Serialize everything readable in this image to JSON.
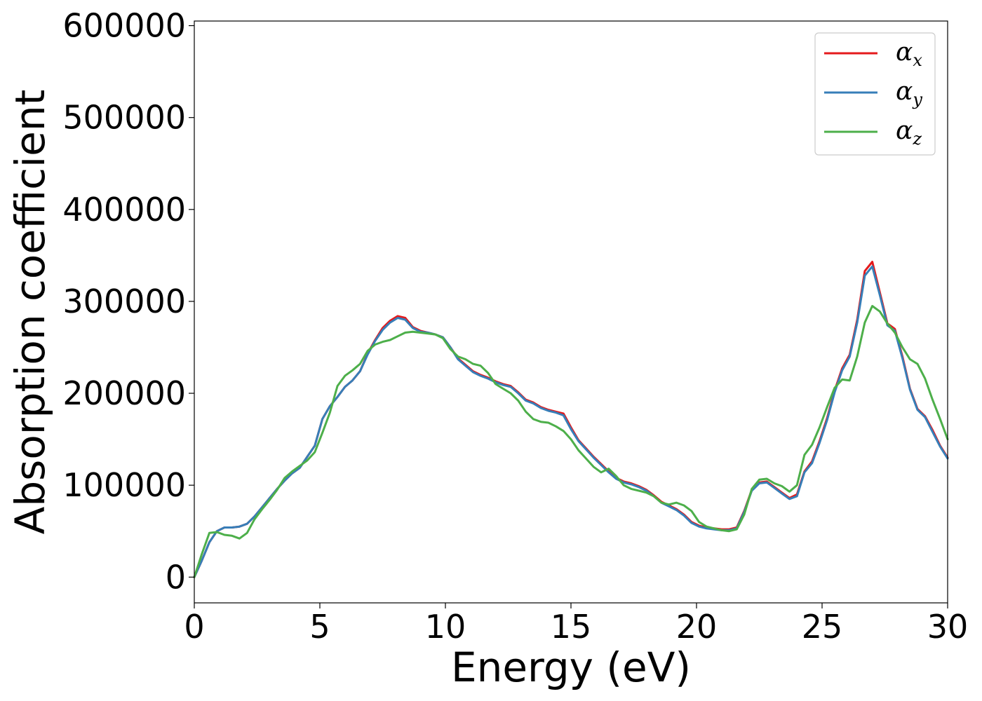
{
  "chart_data": {
    "type": "line",
    "xlabel": "Energy (eV)",
    "ylabel": "Absorption coefficient",
    "xlim": [
      0,
      30
    ],
    "ylim": [
      -28000,
      605000
    ],
    "xticks": [
      0,
      5,
      10,
      15,
      20,
      25,
      30
    ],
    "xtick_labels": [
      "0",
      "5",
      "10",
      "15",
      "20",
      "25",
      "30"
    ],
    "yticks": [
      0,
      100000,
      200000,
      300000,
      400000,
      500000,
      600000
    ],
    "ytick_labels": [
      "0",
      "100000",
      "200000",
      "300000",
      "400000",
      "500000",
      "600000"
    ],
    "grid": false,
    "legend_position": "top-right",
    "series": [
      {
        "name": "α",
        "subscript": "x",
        "color": "#e41a1c",
        "x": [
          0,
          0.3,
          0.6,
          0.9,
          1.2,
          1.5,
          1.8,
          2.1,
          2.4,
          2.7,
          3.0,
          3.3,
          3.6,
          3.9,
          4.2,
          4.5,
          4.8,
          5.1,
          5.4,
          5.7,
          6.0,
          6.3,
          6.6,
          6.9,
          7.2,
          7.5,
          7.8,
          8.1,
          8.4,
          8.7,
          9.0,
          9.3,
          9.6,
          9.9,
          10.2,
          10.5,
          10.8,
          11.1,
          11.4,
          11.7,
          12.0,
          12.3,
          12.6,
          12.9,
          13.2,
          13.5,
          13.8,
          14.1,
          14.4,
          14.7,
          15.0,
          15.3,
          15.6,
          15.9,
          16.2,
          16.5,
          16.8,
          17.1,
          17.4,
          17.7,
          18.0,
          18.3,
          18.6,
          18.9,
          19.2,
          19.5,
          19.8,
          20.1,
          20.4,
          20.7,
          21.0,
          21.3,
          21.6,
          21.9,
          22.2,
          22.5,
          22.8,
          23.1,
          23.4,
          23.7,
          24.0,
          24.3,
          24.6,
          24.9,
          25.2,
          25.5,
          25.8,
          26.1,
          26.4,
          26.7,
          27.0,
          27.3,
          27.6,
          27.9,
          28.2,
          28.5,
          28.8,
          29.1,
          29.4,
          29.7,
          30.0
        ],
        "values": [
          0,
          18000,
          38000,
          50000,
          54000,
          54000,
          55000,
          58000,
          66000,
          76000,
          86000,
          96000,
          105000,
          113000,
          119000,
          131000,
          143000,
          172000,
          186000,
          196000,
          207000,
          214000,
          224000,
          243000,
          258000,
          271000,
          279000,
          284000,
          282000,
          272000,
          268000,
          266000,
          264000,
          261000,
          250000,
          238000,
          231000,
          224000,
          220000,
          217000,
          213000,
          210000,
          208000,
          201000,
          193000,
          190000,
          185000,
          182000,
          180000,
          178000,
          163000,
          149000,
          140000,
          131000,
          123000,
          115000,
          108000,
          104000,
          102000,
          99000,
          95000,
          89000,
          82000,
          78000,
          74000,
          68000,
          60000,
          56000,
          54000,
          53000,
          52000,
          52000,
          54000,
          72000,
          95000,
          103000,
          104000,
          98000,
          92000,
          86000,
          90000,
          115000,
          126000,
          148000,
          173000,
          203000,
          227000,
          242000,
          280000,
          333000,
          343000,
          310000,
          276000,
          270000,
          240000,
          205000,
          183000,
          175000,
          160000,
          143000,
          130000
        ]
      },
      {
        "name": "α",
        "subscript": "y",
        "color": "#377eb8",
        "x": [
          0,
          0.3,
          0.6,
          0.9,
          1.2,
          1.5,
          1.8,
          2.1,
          2.4,
          2.7,
          3.0,
          3.3,
          3.6,
          3.9,
          4.2,
          4.5,
          4.8,
          5.1,
          5.4,
          5.7,
          6.0,
          6.3,
          6.6,
          6.9,
          7.2,
          7.5,
          7.8,
          8.1,
          8.4,
          8.7,
          9.0,
          9.3,
          9.6,
          9.9,
          10.2,
          10.5,
          10.8,
          11.1,
          11.4,
          11.7,
          12.0,
          12.3,
          12.6,
          12.9,
          13.2,
          13.5,
          13.8,
          14.1,
          14.4,
          14.7,
          15.0,
          15.3,
          15.6,
          15.9,
          16.2,
          16.5,
          16.8,
          17.1,
          17.4,
          17.7,
          18.0,
          18.3,
          18.6,
          18.9,
          19.2,
          19.5,
          19.8,
          20.1,
          20.4,
          20.7,
          21.0,
          21.3,
          21.6,
          21.9,
          22.2,
          22.5,
          22.8,
          23.1,
          23.4,
          23.7,
          24.0,
          24.3,
          24.6,
          24.9,
          25.2,
          25.5,
          25.8,
          26.1,
          26.4,
          26.7,
          27.0,
          27.3,
          27.6,
          27.9,
          28.2,
          28.5,
          28.8,
          29.1,
          29.4,
          29.7,
          30.0
        ],
        "values": [
          0,
          18000,
          38000,
          50000,
          54000,
          54000,
          55000,
          58000,
          66000,
          76000,
          86000,
          96000,
          105000,
          113000,
          119000,
          131000,
          143000,
          172000,
          186000,
          196000,
          207000,
          214000,
          224000,
          242000,
          257000,
          269000,
          277000,
          282000,
          280000,
          271000,
          267000,
          266000,
          264000,
          261000,
          250000,
          237000,
          230000,
          223000,
          219000,
          216000,
          212000,
          209000,
          207000,
          200000,
          192000,
          189000,
          184000,
          181000,
          179000,
          176000,
          161000,
          148000,
          139000,
          130000,
          122000,
          114000,
          107000,
          103000,
          101000,
          98000,
          94000,
          88000,
          81000,
          77000,
          73000,
          67000,
          59000,
          55000,
          53000,
          52000,
          51000,
          51000,
          53000,
          71000,
          94000,
          102000,
          103000,
          97000,
          91000,
          85000,
          88000,
          114000,
          124000,
          146000,
          171000,
          201000,
          225000,
          240000,
          277000,
          328000,
          338000,
          307000,
          274000,
          268000,
          238000,
          204000,
          182000,
          174000,
          158000,
          142000,
          129000
        ]
      },
      {
        "name": "α",
        "subscript": "z",
        "color": "#4daf4a",
        "x": [
          0,
          0.3,
          0.6,
          0.9,
          1.2,
          1.5,
          1.8,
          2.1,
          2.4,
          2.7,
          3.0,
          3.3,
          3.6,
          3.9,
          4.2,
          4.5,
          4.8,
          5.1,
          5.4,
          5.7,
          6.0,
          6.3,
          6.6,
          6.9,
          7.2,
          7.5,
          7.8,
          8.1,
          8.4,
          8.7,
          9.0,
          9.3,
          9.6,
          9.9,
          10.2,
          10.5,
          10.8,
          11.1,
          11.4,
          11.7,
          12.0,
          12.3,
          12.6,
          12.9,
          13.2,
          13.5,
          13.8,
          14.1,
          14.4,
          14.7,
          15.0,
          15.3,
          15.6,
          15.9,
          16.2,
          16.5,
          16.8,
          17.1,
          17.4,
          17.7,
          18.0,
          18.3,
          18.6,
          18.9,
          19.2,
          19.5,
          19.8,
          20.1,
          20.4,
          20.7,
          21.0,
          21.3,
          21.6,
          21.9,
          22.2,
          22.5,
          22.8,
          23.1,
          23.4,
          23.7,
          24.0,
          24.3,
          24.6,
          24.9,
          25.2,
          25.5,
          25.8,
          26.1,
          26.4,
          26.7,
          27.0,
          27.3,
          27.6,
          27.9,
          28.2,
          28.5,
          28.8,
          29.1,
          29.4,
          29.7,
          30.0
        ],
        "values": [
          0,
          25000,
          48000,
          49000,
          46000,
          45000,
          42000,
          48000,
          63000,
          74000,
          84000,
          95000,
          108000,
          115000,
          121000,
          127000,
          136000,
          157000,
          179000,
          208000,
          219000,
          225000,
          232000,
          246000,
          253000,
          256000,
          258000,
          262000,
          266000,
          267000,
          266000,
          265000,
          264000,
          260000,
          248000,
          240000,
          237000,
          232000,
          230000,
          222000,
          210000,
          205000,
          200000,
          192000,
          180000,
          172000,
          169000,
          168000,
          164000,
          159000,
          150000,
          138000,
          129000,
          120000,
          114000,
          118000,
          110000,
          100000,
          96000,
          94000,
          92000,
          88000,
          81000,
          79000,
          81000,
          78000,
          72000,
          60000,
          55000,
          53000,
          51000,
          50000,
          52000,
          68000,
          96000,
          106000,
          107000,
          102000,
          99000,
          93000,
          100000,
          133000,
          144000,
          163000,
          185000,
          206000,
          215000,
          214000,
          240000,
          277000,
          295000,
          289000,
          276000,
          266000,
          250000,
          237000,
          232000,
          216000,
          193000,
          172000,
          150000
        ]
      }
    ]
  }
}
